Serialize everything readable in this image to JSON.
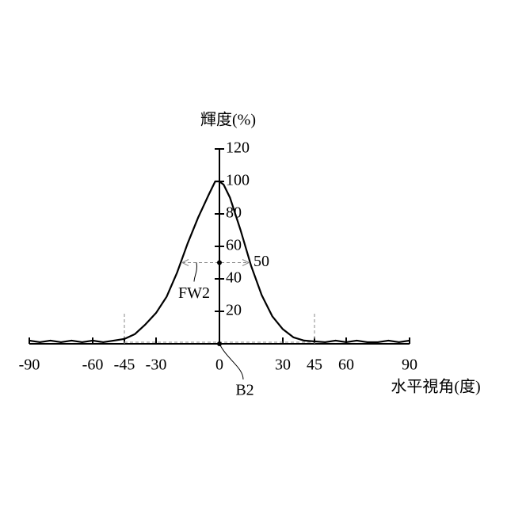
{
  "chart_data": {
    "type": "line",
    "y_label": "輝度(%)",
    "x_label": "水平視角(度)",
    "x": [
      -90,
      -85,
      -80,
      -75,
      -70,
      -65,
      -60,
      -55,
      -50,
      -45,
      -40,
      -35,
      -30,
      -25,
      -20,
      -15,
      -10,
      -5,
      -2,
      0,
      2,
      5,
      10,
      15,
      20,
      25,
      30,
      35,
      40,
      45,
      50,
      55,
      60,
      65,
      70,
      75,
      80,
      85,
      90
    ],
    "series": [
      {
        "name": "B2",
        "color": "#000000",
        "values": [
          2,
          1,
          2,
          1,
          2,
          1,
          2,
          1,
          2,
          3,
          6,
          12,
          19,
          29,
          44,
          62,
          78,
          92,
          100,
          100,
          98,
          90,
          70,
          48,
          30,
          17,
          9,
          4,
          2,
          1.5,
          1,
          2,
          1,
          2,
          1,
          1,
          2,
          1,
          2
        ]
      }
    ],
    "half_max": 50,
    "fw_label": "FW2",
    "xlim": [
      -90,
      90
    ],
    "ylim": [
      0,
      120
    ],
    "xticks": [
      -90,
      -60,
      -45,
      -30,
      0,
      30,
      45,
      60,
      90
    ],
    "yticks": [
      20,
      40,
      60,
      80,
      100,
      120
    ]
  }
}
